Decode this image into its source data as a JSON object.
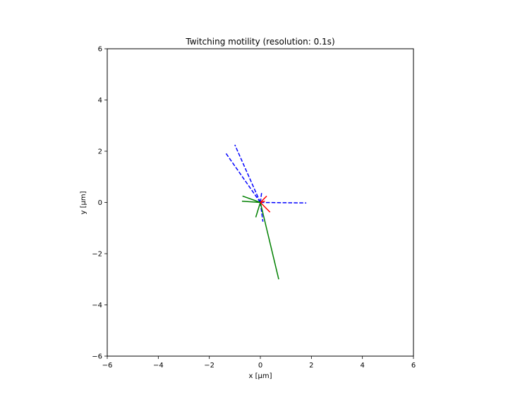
{
  "chart_data": {
    "type": "line",
    "title": "Twitching motility (resolution: 0.1s)",
    "xlabel": "x [μm]",
    "ylabel": "y [μm]",
    "xlim": [
      -6,
      6
    ],
    "ylim": [
      -6,
      6
    ],
    "xticks": [
      -6,
      -4,
      -2,
      0,
      2,
      4,
      6
    ],
    "yticks": [
      -6,
      -4,
      -2,
      0,
      2,
      4,
      6
    ],
    "grid": false,
    "legend": "none",
    "series": [
      {
        "color": "#0000ff",
        "dash": "dashed",
        "x": [
          0,
          -1.0
        ],
        "y": [
          0,
          2.25
        ]
      },
      {
        "color": "#0000ff",
        "dash": "dashed",
        "x": [
          0,
          -1.35
        ],
        "y": [
          0,
          1.92
        ]
      },
      {
        "color": "#0000ff",
        "dash": "dashed",
        "x": [
          0,
          1.8
        ],
        "y": [
          0,
          -0.02
        ]
      },
      {
        "color": "#0000ff",
        "dash": "dashed",
        "x": [
          0,
          0.1
        ],
        "y": [
          0,
          -0.75
        ]
      },
      {
        "color": "#0000ff",
        "dash": "dashed",
        "x": [
          0,
          0.05
        ],
        "y": [
          0,
          0.38
        ]
      },
      {
        "color": "#008000",
        "dash": "solid",
        "x": [
          0,
          0.72
        ],
        "y": [
          0,
          -3.0
        ]
      },
      {
        "color": "#008000",
        "dash": "solid",
        "x": [
          0,
          -0.7
        ],
        "y": [
          0,
          0.25
        ]
      },
      {
        "color": "#008000",
        "dash": "solid",
        "x": [
          0,
          -0.72
        ],
        "y": [
          0,
          0.05
        ]
      },
      {
        "color": "#008000",
        "dash": "solid",
        "x": [
          0,
          -0.18
        ],
        "y": [
          0,
          -0.58
        ]
      },
      {
        "color": "#ff0000",
        "dash": "solid",
        "x": [
          0,
          0.38
        ],
        "y": [
          0,
          -0.38
        ]
      },
      {
        "color": "#ff0000",
        "dash": "solid",
        "x": [
          0,
          0.25
        ],
        "y": [
          0,
          0.25
        ]
      },
      {
        "color": "#ff0000",
        "dash": "solid",
        "x": [
          0,
          0.18
        ],
        "y": [
          0,
          0.05
        ]
      }
    ]
  }
}
